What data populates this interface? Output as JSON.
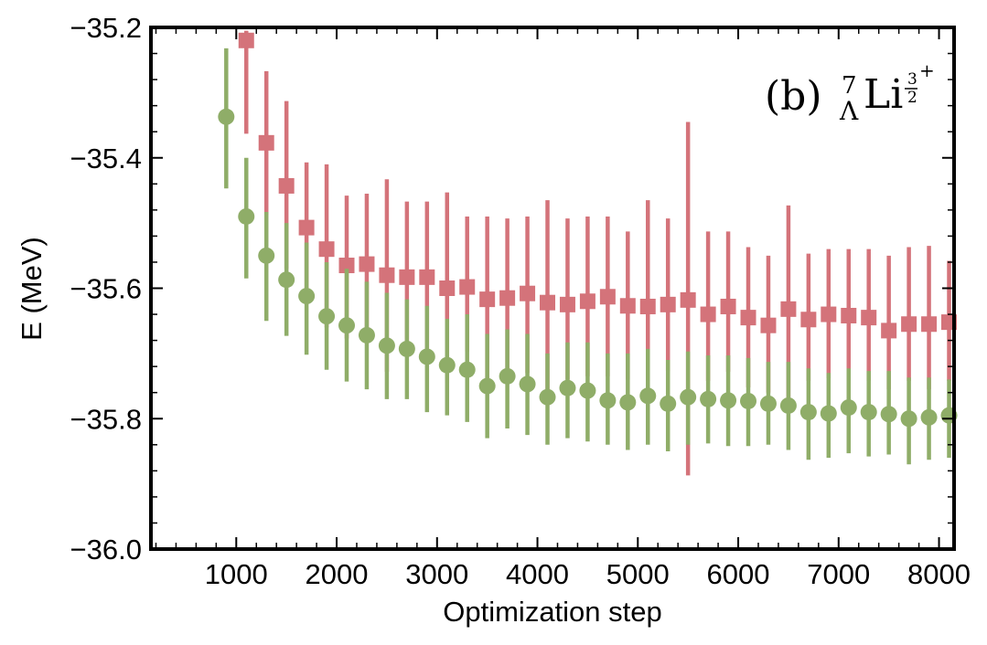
{
  "chart_data": {
    "type": "scatter",
    "title": "",
    "xlabel": "Optimization step",
    "ylabel": "E (MeV)",
    "xlim": [
      150,
      8150
    ],
    "ylim": [
      -36.0,
      -35.2
    ],
    "xticks": [
      1000,
      2000,
      3000,
      4000,
      5000,
      6000,
      7000,
      8000
    ],
    "xtick_labels": [
      "1000",
      "2000",
      "3000",
      "4000",
      "5000",
      "6000",
      "7000",
      "8000"
    ],
    "yticks": [
      -36.0,
      -35.8,
      -35.6,
      -35.4,
      -35.2
    ],
    "ytick_labels": [
      "−36.0",
      "−35.8",
      "−35.6",
      "−35.4",
      "−35.2"
    ],
    "grid": false,
    "annotation": {
      "panel": "(b)",
      "mass_number": "7",
      "subscript": "Λ",
      "element": "Li",
      "spin_numerator": "3",
      "spin_denominator": "2",
      "parity": "+"
    },
    "series": [
      {
        "name": "square-series",
        "marker": "square",
        "color": "#d4737a",
        "x": [
          1100,
          1300,
          1500,
          1700,
          1900,
          2100,
          2300,
          2500,
          2700,
          2900,
          3100,
          3300,
          3500,
          3700,
          3900,
          4100,
          4300,
          4500,
          4700,
          4900,
          5100,
          5300,
          5500,
          5700,
          5900,
          6100,
          6300,
          6500,
          6700,
          6900,
          7100,
          7300,
          7500,
          7700,
          7900,
          8100
        ],
        "y": [
          -35.22,
          -35.377,
          -35.443,
          -35.507,
          -35.54,
          -35.565,
          -35.563,
          -35.58,
          -35.583,
          -35.583,
          -35.6,
          -35.598,
          -35.617,
          -35.615,
          -35.608,
          -35.622,
          -35.625,
          -35.62,
          -35.613,
          -35.627,
          -35.628,
          -35.625,
          -35.618,
          -35.64,
          -35.628,
          -35.645,
          -35.657,
          -35.632,
          -35.648,
          -35.64,
          -35.642,
          -35.645,
          -35.665,
          -35.655,
          -35.655,
          -35.652
        ],
        "y_low": [
          -35.363,
          -35.487,
          -35.57,
          -35.603,
          -35.66,
          -35.677,
          -35.67,
          -35.728,
          -35.695,
          -35.695,
          -35.745,
          -35.697,
          -35.742,
          -35.735,
          -35.73,
          -35.772,
          -35.74,
          -35.735,
          -35.735,
          -35.74,
          -35.742,
          -35.727,
          -35.887,
          -35.742,
          -35.728,
          -35.752,
          -35.76,
          -35.78,
          -35.742,
          -35.738,
          -35.742,
          -35.742,
          -35.755,
          -35.742,
          -35.755,
          -35.742
        ],
        "y_high": [
          -35.205,
          -35.267,
          -35.313,
          -35.407,
          -35.41,
          -35.458,
          -35.455,
          -35.433,
          -35.467,
          -35.467,
          -35.453,
          -35.49,
          -35.49,
          -35.493,
          -35.49,
          -35.465,
          -35.493,
          -35.49,
          -35.49,
          -35.513,
          -35.465,
          -35.493,
          -35.345,
          -35.513,
          -35.513,
          -35.537,
          -35.55,
          -35.473,
          -35.547,
          -35.54,
          -35.54,
          -35.54,
          -35.55,
          -35.537,
          -35.535,
          -35.558
        ]
      },
      {
        "name": "circle-series",
        "marker": "circle",
        "color": "#8fad68",
        "x": [
          900,
          1100,
          1300,
          1500,
          1700,
          1900,
          2100,
          2300,
          2500,
          2700,
          2900,
          3100,
          3300,
          3500,
          3700,
          3900,
          4100,
          4300,
          4500,
          4700,
          4900,
          5100,
          5300,
          5500,
          5700,
          5900,
          6100,
          6300,
          6500,
          6700,
          6900,
          7100,
          7300,
          7500,
          7700,
          7900,
          8100
        ],
        "y": [
          -35.337,
          -35.49,
          -35.55,
          -35.587,
          -35.612,
          -35.643,
          -35.657,
          -35.672,
          -35.688,
          -35.693,
          -35.705,
          -35.718,
          -35.725,
          -35.75,
          -35.735,
          -35.747,
          -35.767,
          -35.753,
          -35.757,
          -35.772,
          -35.775,
          -35.765,
          -35.777,
          -35.767,
          -35.77,
          -35.772,
          -35.773,
          -35.777,
          -35.78,
          -35.79,
          -35.792,
          -35.783,
          -35.79,
          -35.793,
          -35.8,
          -35.798,
          -35.795
        ],
        "y_low": [
          -35.447,
          -35.585,
          -35.65,
          -35.673,
          -35.702,
          -35.725,
          -35.743,
          -35.755,
          -35.77,
          -35.77,
          -35.79,
          -35.795,
          -35.805,
          -35.83,
          -35.815,
          -35.825,
          -35.84,
          -35.83,
          -35.835,
          -35.84,
          -35.848,
          -35.84,
          -35.85,
          -35.84,
          -35.838,
          -35.842,
          -35.842,
          -35.84,
          -35.848,
          -35.863,
          -35.86,
          -35.853,
          -35.858,
          -35.855,
          -35.87,
          -35.863,
          -35.86
        ],
        "y_high": [
          -35.232,
          -35.4,
          -35.483,
          -35.5,
          -35.53,
          -35.56,
          -35.57,
          -35.59,
          -35.607,
          -35.617,
          -35.627,
          -35.647,
          -35.64,
          -35.67,
          -35.663,
          -35.67,
          -35.7,
          -35.683,
          -35.683,
          -35.7,
          -35.7,
          -35.693,
          -35.71,
          -35.697,
          -35.703,
          -35.703,
          -35.707,
          -35.713,
          -35.713,
          -35.723,
          -35.73,
          -35.723,
          -35.727,
          -35.727,
          -35.737,
          -35.737,
          -35.74
        ]
      }
    ]
  }
}
